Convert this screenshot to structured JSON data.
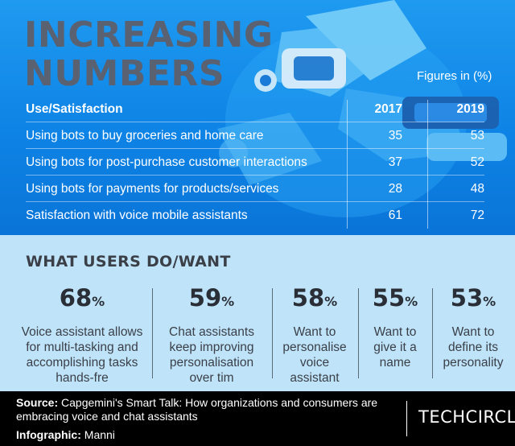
{
  "header": {
    "title_line1": "INCREASING",
    "title_line2": "NUMBERS",
    "figures_note": "Figures in (%)"
  },
  "table": {
    "columns": [
      "Use/Satisfaction",
      "2017",
      "2019"
    ],
    "rows": [
      {
        "label": "Using bots to buy groceries and home care",
        "y2017": "35",
        "y2019": "53"
      },
      {
        "label": "Using bots for post-purchase customer interactions",
        "y2017": "37",
        "y2019": "52"
      },
      {
        "label": "Using bots for payments for products/services",
        "y2017": "28",
        "y2019": "48"
      },
      {
        "label": "Satisfaction with voice mobile assistants",
        "y2017": "61",
        "y2019": "72"
      }
    ]
  },
  "what_users": {
    "title": "WHAT USERS DO/WANT",
    "percent_sign": "%",
    "stats": [
      {
        "value": "68",
        "desc": [
          "Voice assistant allows",
          "for multi-tasking and",
          "accomplishing tasks",
          "hands-fre"
        ]
      },
      {
        "value": "59",
        "desc": [
          "Chat assistants",
          "keep improving",
          "personalisation",
          "over tim"
        ]
      },
      {
        "value": "58",
        "desc": [
          "Want to",
          "personalise",
          "voice",
          "assistant"
        ]
      },
      {
        "value": "55",
        "desc": [
          "Want to",
          "give it a",
          "name"
        ]
      },
      {
        "value": "53",
        "desc": [
          "Want to",
          "define its",
          "personality"
        ]
      }
    ]
  },
  "footer": {
    "source_label": "Source:",
    "source_text": " Capgemini's Smart Talk: How organizations and consumers are embracing voice and chat assistants",
    "infographic_label": "Infographic:",
    "infographic_text": " Manni",
    "brand": "TECHCIRCLE"
  },
  "colors": {
    "top_background": "#1590ec",
    "mid_background": "#bfe3f8",
    "footer_background": "#000000",
    "title_color": "#5a6170"
  },
  "icons": {
    "background_art": "robot-illustration"
  }
}
